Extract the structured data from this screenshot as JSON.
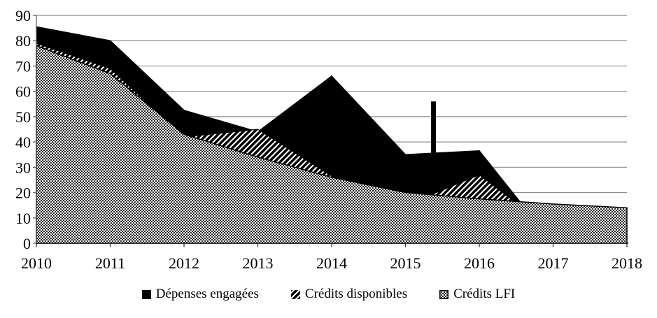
{
  "chart_data": {
    "type": "area",
    "title": "",
    "categories": [
      "2010",
      "2011",
      "2012",
      "2013",
      "2014",
      "2015",
      "2016",
      "2017",
      "2018"
    ],
    "series": [
      {
        "name": "Dépenses engagées",
        "style": "solid-black",
        "values": [
          85.5,
          80,
          52.5,
          44,
          66,
          35,
          36.5,
          0,
          0
        ]
      },
      {
        "name": "Crédits disponibles",
        "style": "diagonal-hatch",
        "values": [
          79,
          69,
          42,
          45,
          26.5,
          15,
          27,
          5,
          0
        ]
      },
      {
        "name": "Crédits LFI",
        "style": "dotted",
        "values": [
          78,
          67,
          43,
          34,
          26,
          20,
          17.5,
          15.5,
          14
        ]
      }
    ],
    "anomaly_bar": {
      "series": "Dépenses engagées",
      "year_x": 2015.38,
      "value_from": 35.5,
      "value_to": 56
    },
    "xlabel": "",
    "ylabel": "",
    "ylim": [
      0,
      90
    ],
    "y_ticks": [
      0,
      10,
      20,
      30,
      40,
      50,
      60,
      70,
      80,
      90
    ],
    "grid": "horizontal",
    "legend_position": "bottom-center"
  },
  "colors": {
    "series_black": "#000000",
    "gridline": "#8c8c8c",
    "axis_y": "#666666",
    "axis_x": "#333333",
    "background": "#ffffff",
    "text": "#000000"
  }
}
